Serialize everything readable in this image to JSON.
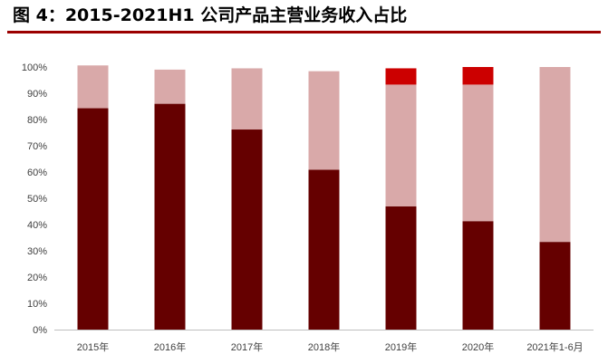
{
  "figure_title": "图 4：2015-2021H1 公司产品主营业务收入占比",
  "colors": {
    "title_rule": "#9b0000",
    "axis": "#bfbfbf",
    "tick_text": "#404040"
  },
  "chart_data": {
    "type": "bar",
    "stacked": true,
    "categories": [
      "2015年",
      "2016年",
      "2017年",
      "2018年",
      "2019年",
      "2020年",
      "2021年1-6月"
    ],
    "ylim": [
      0,
      100
    ],
    "ytick_labels": [
      "0%",
      "10%",
      "20%",
      "30%",
      "40%",
      "50%",
      "60%",
      "70%",
      "80%",
      "90%",
      "100%"
    ],
    "grid": false,
    "legend": "none",
    "series": [
      {
        "values": [
          84.3,
          86.0,
          76.2,
          60.9,
          46.9,
          41.3,
          33.4
        ],
        "color": "#650000"
      },
      {
        "values": [
          16.3,
          13.0,
          23.3,
          37.5,
          46.4,
          52.0,
          66.6
        ],
        "color": "#d9a9a9"
      },
      {
        "values": [
          0,
          0,
          0,
          0,
          6.2,
          6.7,
          0
        ],
        "color": "#cc0000"
      }
    ]
  }
}
